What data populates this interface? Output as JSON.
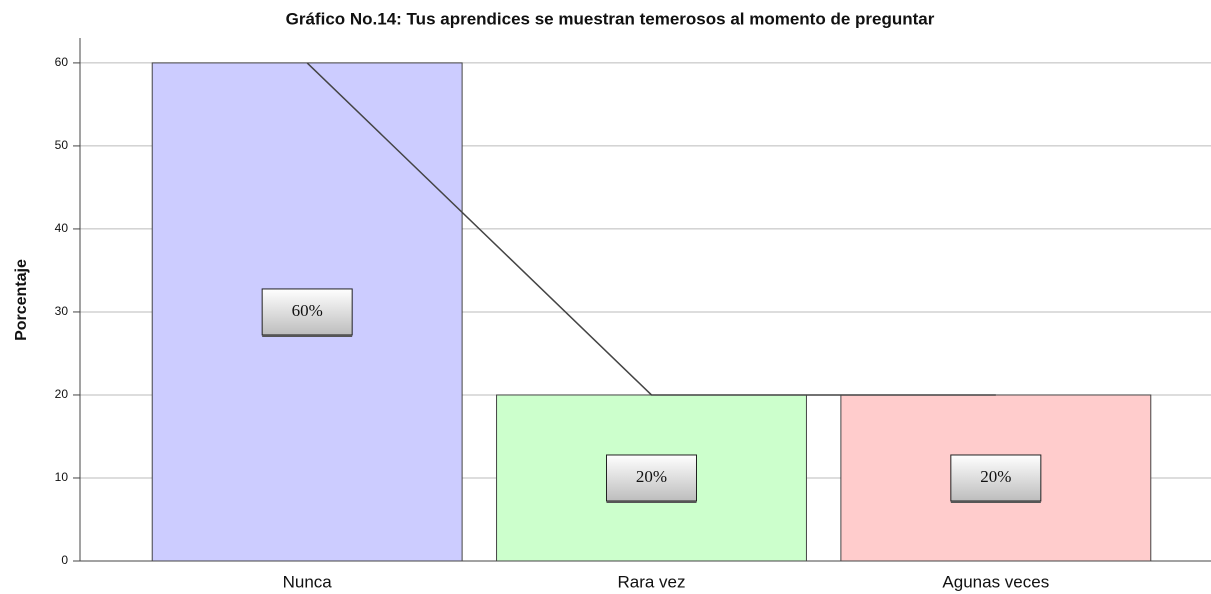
{
  "chart_data": {
    "type": "bar",
    "title": "Gráfico No.14: Tus aprendices se muestran temerosos al momento de preguntar",
    "y_label": "Porcentaje",
    "categories": [
      "Nunca",
      "Rara vez",
      "Agunas veces"
    ],
    "values": [
      60,
      20,
      20
    ],
    "value_labels": [
      "60%",
      "20%",
      "20%"
    ],
    "colors": [
      "#ccccff",
      "#ccffcc",
      "#ffcccc"
    ],
    "line_color": "#444444",
    "ylim": [
      0,
      63
    ],
    "yticks": [
      0,
      10,
      20,
      30,
      40,
      50,
      60
    ],
    "grid": true
  }
}
